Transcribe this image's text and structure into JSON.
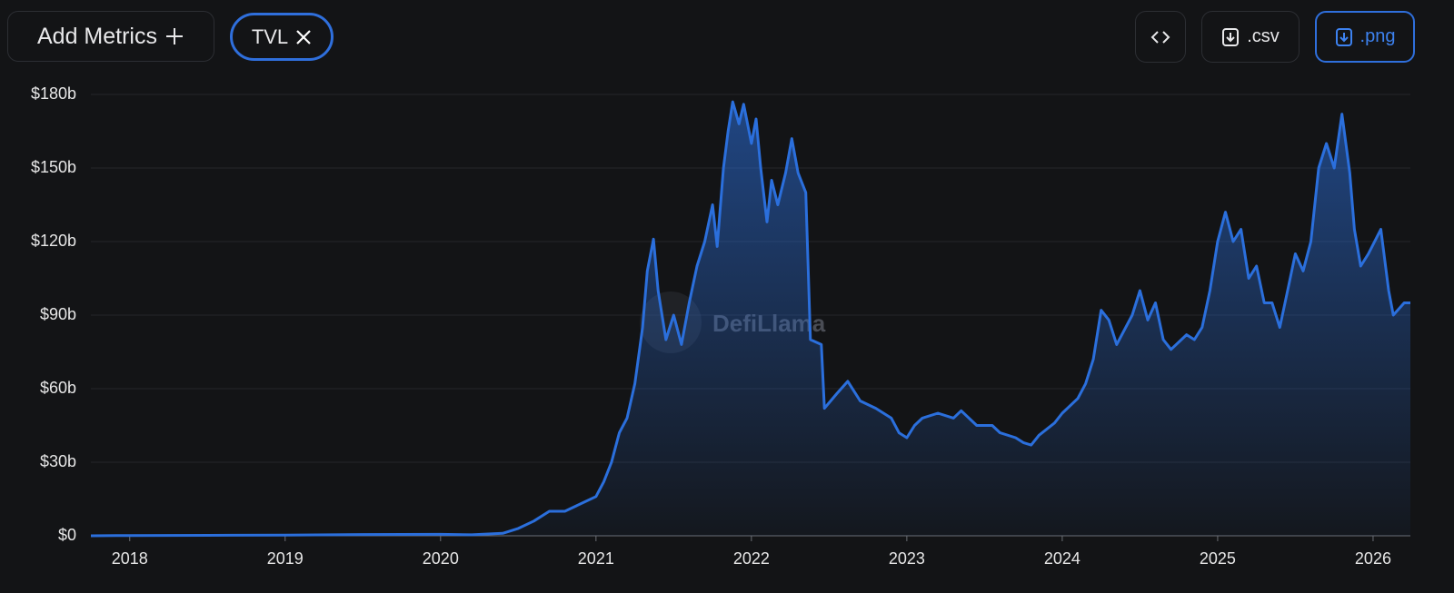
{
  "toolbar": {
    "add_metrics": "Add Metrics",
    "metric_chip": "TVL",
    "csv_button": ".csv",
    "png_button": ".png"
  },
  "chart_data": {
    "type": "area",
    "watermark": "DefiLlama",
    "x": [
      2017.75,
      2018.0,
      2018.5,
      2019.0,
      2019.5,
      2020.0,
      2020.2,
      2020.4,
      2020.5,
      2020.6,
      2020.7,
      2020.8,
      2020.9,
      2021.0,
      2021.05,
      2021.1,
      2021.15,
      2021.2,
      2021.25,
      2021.3,
      2021.33,
      2021.37,
      2021.4,
      2021.45,
      2021.5,
      2021.55,
      2021.6,
      2021.65,
      2021.7,
      2021.75,
      2021.78,
      2021.82,
      2021.85,
      2021.88,
      2021.92,
      2021.95,
      2022.0,
      2022.03,
      2022.06,
      2022.1,
      2022.13,
      2022.17,
      2022.22,
      2022.26,
      2022.3,
      2022.35,
      2022.38,
      2022.45,
      2022.47,
      2022.55,
      2022.62,
      2022.7,
      2022.8,
      2022.9,
      2022.95,
      2023.0,
      2023.05,
      2023.1,
      2023.2,
      2023.3,
      2023.35,
      2023.45,
      2023.55,
      2023.6,
      2023.7,
      2023.75,
      2023.8,
      2023.85,
      2023.95,
      2024.0,
      2024.1,
      2024.15,
      2024.2,
      2024.25,
      2024.3,
      2024.35,
      2024.45,
      2024.5,
      2024.55,
      2024.6,
      2024.65,
      2024.7,
      2024.8,
      2024.85,
      2024.9,
      2024.95,
      2025.0,
      2025.05,
      2025.1,
      2025.15,
      2025.2,
      2025.25,
      2025.3,
      2025.35,
      2025.4,
      2025.45,
      2025.5,
      2025.55,
      2025.6,
      2025.65,
      2025.7,
      2025.75,
      2025.8,
      2025.85,
      2025.88,
      2025.92,
      2025.97,
      2026.05,
      2026.1,
      2026.13,
      2026.2,
      2026.24
    ],
    "series": [
      {
        "name": "TVL",
        "color": "#2b6fdc",
        "values": [
          0,
          0.1,
          0.2,
          0.3,
          0.5,
          0.6,
          0.4,
          1,
          3,
          6,
          10,
          10,
          13,
          16,
          22,
          30,
          42,
          48,
          62,
          85,
          108,
          121,
          100,
          80,
          90,
          78,
          95,
          110,
          120,
          135,
          118,
          150,
          165,
          177,
          168,
          176,
          160,
          170,
          150,
          128,
          145,
          135,
          148,
          162,
          148,
          140,
          80,
          78,
          52,
          58,
          63,
          55,
          52,
          48,
          42,
          40,
          45,
          48,
          50,
          48,
          51,
          45,
          45,
          42,
          40,
          38,
          37,
          41,
          46,
          50,
          56,
          62,
          72,
          92,
          88,
          78,
          90,
          100,
          88,
          95,
          80,
          76,
          82,
          80,
          85,
          100,
          120,
          132,
          120,
          125,
          105,
          110,
          95,
          95,
          85,
          100,
          115,
          108,
          120,
          150,
          160,
          150,
          172,
          148,
          125,
          110,
          115,
          125,
          100,
          90,
          95,
          95
        ]
      }
    ],
    "xlim": [
      2017.75,
      2026.24
    ],
    "xticks": [
      2018,
      2019,
      2020,
      2021,
      2022,
      2023,
      2024,
      2025,
      2026
    ],
    "ylim": [
      0,
      180
    ],
    "yticks": [
      {
        "value": 0,
        "label": "$0"
      },
      {
        "value": 30,
        "label": "$30b"
      },
      {
        "value": 60,
        "label": "$60b"
      },
      {
        "value": 90,
        "label": "$90b"
      },
      {
        "value": 120,
        "label": "$120b"
      },
      {
        "value": 150,
        "label": "$150b"
      },
      {
        "value": 180,
        "label": "$180b"
      }
    ],
    "grid": true
  }
}
